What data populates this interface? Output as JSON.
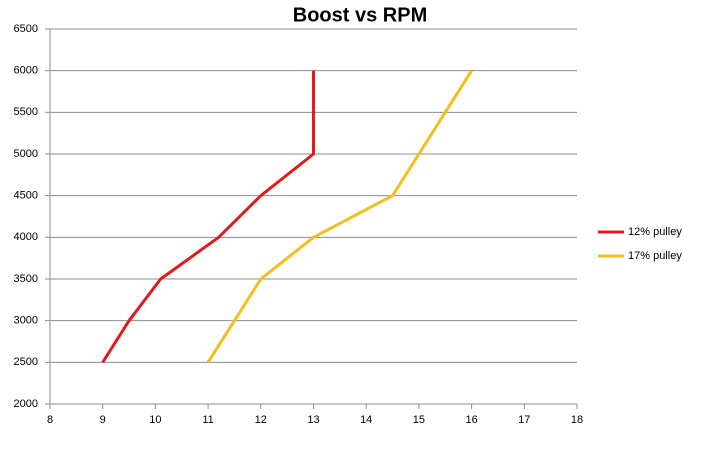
{
  "chart_data": {
    "type": "line",
    "title": "Boost vs RPM",
    "series": [
      {
        "name": "12% pulley",
        "color": "#e31a1c",
        "x": [
          9,
          9.5,
          10.1,
          11.2,
          12,
          13,
          13
        ],
        "values": [
          2500,
          3000,
          3500,
          4000,
          4500,
          5000,
          6000
        ]
      },
      {
        "name": "17% pulley",
        "color": "#f5bd1f",
        "x": [
          11,
          12,
          13,
          14.5,
          15,
          15.5,
          16
        ],
        "values": [
          2500,
          3500,
          4000,
          4500,
          5000,
          5500,
          6000
        ]
      }
    ],
    "xlim": [
      8,
      18
    ],
    "xticks": [
      8,
      9,
      10,
      11,
      12,
      13,
      14,
      15,
      16,
      17,
      18
    ],
    "ylim": [
      2000,
      6500
    ],
    "yticks": [
      2000,
      2500,
      3000,
      3500,
      4000,
      4500,
      5000,
      5500,
      6000,
      6500
    ],
    "grid": true,
    "legend": "right"
  }
}
